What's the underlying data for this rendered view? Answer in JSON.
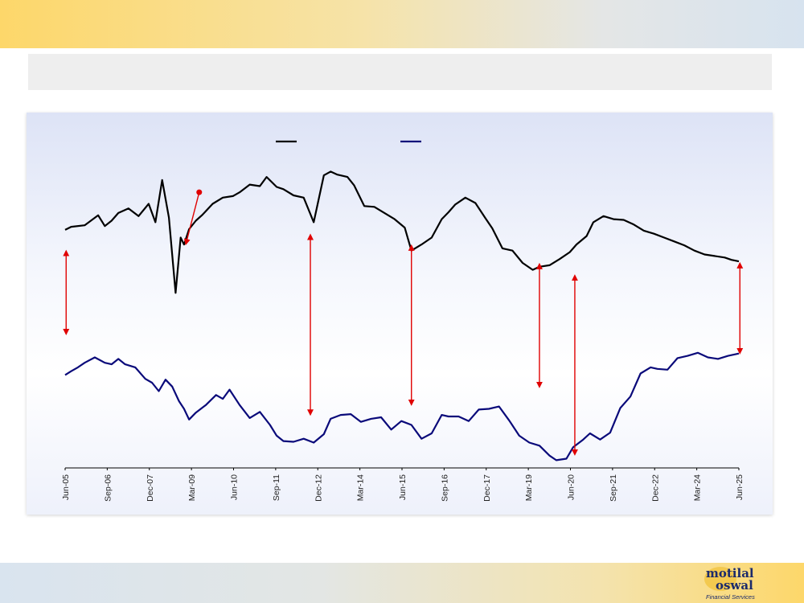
{
  "chart_data": {
    "type": "line",
    "x_ticks": [
      "Jun-05",
      "Sep-06",
      "Dec-07",
      "Mar-09",
      "Jun-10",
      "Sep-11",
      "Dec-12",
      "Mar-14",
      "Jun-15",
      "Sep-16",
      "Dec-17",
      "Mar-19",
      "Jun-20",
      "Sep-21",
      "Dec-22",
      "Mar-24",
      "Jun-25"
    ],
    "series": [
      {
        "color": "#000000",
        "x": [
          2005.42,
          2005.6,
          2006.0,
          2006.4,
          2006.6,
          2006.8,
          2007.0,
          2007.3,
          2007.6,
          2007.9,
          2008.1,
          2008.3,
          2008.5,
          2008.7,
          2008.85,
          2008.95,
          2009.1,
          2009.3,
          2009.5,
          2009.8,
          2010.1,
          2010.4,
          2010.6,
          2010.9,
          2011.2,
          2011.4,
          2011.7,
          2011.9,
          2012.2,
          2012.5,
          2012.8,
          2013.1,
          2013.3,
          2013.5,
          2013.8,
          2014.0,
          2014.3,
          2014.6,
          2014.9,
          2015.2,
          2015.5,
          2015.7,
          2016.0,
          2016.3,
          2016.6,
          2016.8,
          2017.0,
          2017.3,
          2017.6,
          2017.9,
          2018.1,
          2018.4,
          2018.7,
          2019.0,
          2019.3,
          2019.5,
          2019.8,
          2020.1,
          2020.4,
          2020.6,
          2020.9,
          2021.1,
          2021.4,
          2021.7,
          2022.0,
          2022.3,
          2022.6,
          2022.9,
          2023.2,
          2023.5,
          2023.8,
          2024.1,
          2024.4,
          2024.7,
          2025.0,
          2025.2,
          2025.42
        ],
        "values": [
          3.0,
          3.4,
          3.6,
          4.9,
          3.5,
          4.2,
          5.2,
          5.8,
          4.8,
          6.4,
          4.0,
          9.5,
          4.6,
          -5.2,
          2.0,
          1.1,
          3.1,
          4.2,
          5.0,
          6.4,
          7.2,
          7.4,
          7.9,
          8.9,
          8.7,
          9.9,
          8.6,
          8.3,
          7.5,
          7.2,
          4.0,
          10.1,
          10.6,
          10.2,
          9.9,
          8.8,
          6.1,
          6.0,
          5.2,
          4.4,
          3.3,
          0.3,
          1.1,
          2.0,
          4.4,
          5.3,
          6.3,
          7.2,
          6.5,
          4.5,
          3.2,
          0.6,
          0.3,
          -1.3,
          -2.2,
          -1.8,
          -1.6,
          -0.8,
          0.1,
          1.1,
          2.2,
          4.0,
          4.8,
          4.4,
          4.3,
          3.7,
          2.9,
          2.5,
          2.0,
          1.5,
          1.0,
          0.3,
          -0.2,
          -0.4,
          -0.6,
          -0.9,
          -1.1
        ]
      },
      {
        "color": "#0a0a7a",
        "x": [
          2005.42,
          2005.6,
          2005.8,
          2006.0,
          2006.3,
          2006.6,
          2006.8,
          2007.0,
          2007.2,
          2007.5,
          2007.8,
          2008.0,
          2008.2,
          2008.4,
          2008.6,
          2008.8,
          2008.95,
          2009.1,
          2009.3,
          2009.6,
          2009.9,
          2010.1,
          2010.3,
          2010.6,
          2010.9,
          2011.2,
          2011.5,
          2011.7,
          2011.9,
          2012.2,
          2012.5,
          2012.8,
          2013.1,
          2013.3,
          2013.6,
          2013.9,
          2014.2,
          2014.5,
          2014.8,
          2015.1,
          2015.4,
          2015.7,
          2016.0,
          2016.3,
          2016.6,
          2016.8,
          2017.1,
          2017.4,
          2017.7,
          2018.0,
          2018.3,
          2018.6,
          2018.9,
          2019.2,
          2019.5,
          2019.8,
          2020.0,
          2020.3,
          2020.5,
          2020.8,
          2021.0,
          2021.3,
          2021.6,
          2021.9,
          2022.2,
          2022.5,
          2022.8,
          2023.0,
          2023.3,
          2023.6,
          2023.9,
          2024.2,
          2024.5,
          2024.8,
          2025.1,
          2025.42
        ],
        "values": [
          -15.9,
          -15.4,
          -14.9,
          -14.3,
          -13.6,
          -14.3,
          -14.5,
          -13.8,
          -14.5,
          -14.9,
          -16.4,
          -16.9,
          -18.0,
          -16.5,
          -17.4,
          -19.3,
          -20.3,
          -21.7,
          -20.8,
          -19.8,
          -18.5,
          -19.0,
          -17.8,
          -19.8,
          -21.5,
          -20.7,
          -22.4,
          -23.8,
          -24.5,
          -24.6,
          -24.2,
          -24.7,
          -23.6,
          -21.6,
          -21.1,
          -21.0,
          -22.0,
          -21.6,
          -21.4,
          -23.0,
          -21.9,
          -22.4,
          -24.2,
          -23.5,
          -21.1,
          -21.3,
          -21.3,
          -21.9,
          -20.4,
          -20.3,
          -20.0,
          -21.8,
          -23.8,
          -24.7,
          -25.1,
          -26.4,
          -27.0,
          -26.8,
          -25.3,
          -24.3,
          -23.5,
          -24.3,
          -23.4,
          -20.2,
          -18.7,
          -15.7,
          -14.9,
          -15.1,
          -15.2,
          -13.7,
          -13.4,
          -13.0,
          -13.6,
          -13.8,
          -13.4,
          -13.1
        ]
      }
    ],
    "xlim": [
      2005.42,
      2025.42
    ],
    "ylim": [
      -28,
      12
    ],
    "grid": false,
    "arrows": [
      {
        "x": 2005.45,
        "y_top": 0.0,
        "y_bottom": -10.3,
        "double": true
      },
      {
        "x": 2012.7,
        "y_top": 2.1,
        "y_bottom": -20.8,
        "double": true
      },
      {
        "x": 2015.7,
        "y_top": 0.7,
        "y_bottom": -19.5,
        "double": true
      },
      {
        "x": 2019.5,
        "y_top": -1.7,
        "y_bottom": -17.2,
        "double": true
      },
      {
        "x": 2020.55,
        "y_top": -3.2,
        "y_bottom": -26.0,
        "double": true
      },
      {
        "x": 2025.45,
        "y_top": -1.6,
        "y_bottom": -12.8,
        "double": true
      },
      {
        "x": 2009.4,
        "y_top": 7.9,
        "y_bottom": 1.4,
        "double": false
      }
    ]
  },
  "colors": {
    "arrow": "#e00000",
    "axis": "#000000"
  },
  "logo": {
    "line1": "motilal",
    "line2": "oswal",
    "line3": "Financial Services"
  }
}
